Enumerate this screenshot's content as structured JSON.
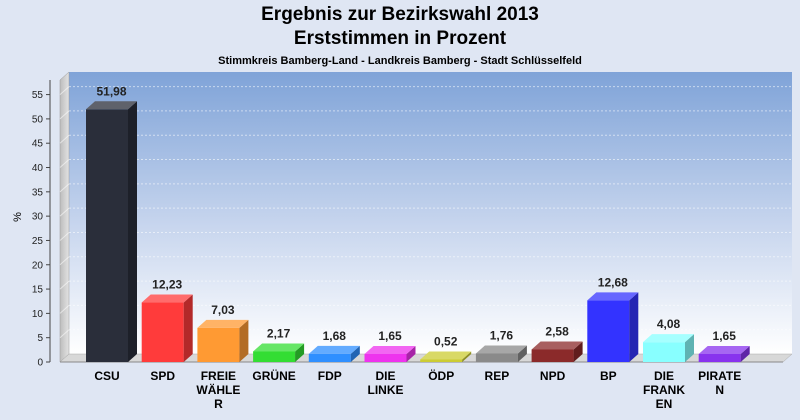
{
  "title": "Ergebnis zur Bezirkswahl 2013",
  "subtitle": "Erststimmen in Prozent",
  "subsubtitle": "Stimmkreis Bamberg-Land - Landkreis Bamberg - Stadt Schlüsselfeld",
  "colors": {
    "background": "#dfe6f3",
    "plot_top": "#7fa3d8",
    "plot_bottom": "#ffffff"
  },
  "chart_data": {
    "type": "bar",
    "title": "Ergebnis zur Bezirkswahl 2013",
    "subtitle": "Erststimmen in Prozent",
    "ylabel": "%",
    "ylim": [
      0,
      58
    ],
    "yticks": [
      0,
      5,
      10,
      15,
      20,
      25,
      30,
      35,
      40,
      45,
      50,
      55
    ],
    "grid": true,
    "categories": [
      [
        "CSU"
      ],
      [
        "SPD"
      ],
      [
        "FREIE",
        "WÄHLE",
        "R"
      ],
      [
        "GRÜNE"
      ],
      [
        "FDP"
      ],
      [
        "DIE",
        "LINKE"
      ],
      [
        "ÖDP"
      ],
      [
        "REP"
      ],
      [
        "NPD"
      ],
      [
        "BP"
      ],
      [
        "DIE",
        "FRANK",
        "EN"
      ],
      [
        "PIRATE",
        "N"
      ]
    ],
    "values": [
      51.98,
      12.23,
      7.03,
      2.17,
      1.68,
      1.65,
      0.52,
      1.76,
      2.58,
      12.68,
      4.08,
      1.65
    ],
    "value_labels": [
      "51,98",
      "12,23",
      "7,03",
      "2,17",
      "1,68",
      "1,65",
      "0,52",
      "1,76",
      "2,58",
      "12,68",
      "4,08",
      "1,65"
    ],
    "bar_colors": [
      "#2a2e3a",
      "#ff3b3b",
      "#ff9a33",
      "#33dd33",
      "#2f8fff",
      "#ee33ee",
      "#cccc33",
      "#8a8a8a",
      "#8b2a2a",
      "#3333ff",
      "#88ffff",
      "#8833ee"
    ]
  }
}
